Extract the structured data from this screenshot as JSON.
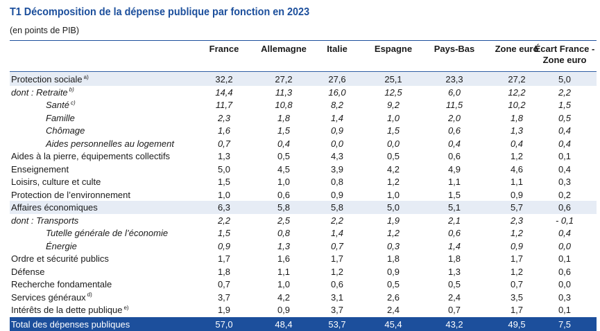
{
  "header": {
    "title": "T1  Décomposition de la dépense publique par fonction en 2023",
    "subtitle": "(en points de PIB)"
  },
  "columns": [
    "France",
    "Allemagne",
    "Italie",
    "Espagne",
    "Pays-Bas",
    "Zone euro",
    "Écart France -",
    "Zone euro"
  ],
  "rows": [
    {
      "label": "Protection sociale",
      "note": "a)",
      "values": [
        "32,2",
        "27,2",
        "27,6",
        "25,1",
        "23,3",
        "27,2",
        "5,0"
      ]
    },
    {
      "prefix": "dont : ",
      "label": "Retraite",
      "note": "b)",
      "values": [
        "14,4",
        "11,3",
        "16,0",
        "12,5",
        "6,0",
        "12,2",
        "2,2"
      ]
    },
    {
      "label": "Santé",
      "note": "c)",
      "values": [
        "11,7",
        "10,8",
        "8,2",
        "9,2",
        "11,5",
        "10,2",
        "1,5"
      ]
    },
    {
      "label": "Famille",
      "values": [
        "2,3",
        "1,8",
        "1,4",
        "1,0",
        "2,0",
        "1,8",
        "0,5"
      ]
    },
    {
      "label": "Chômage",
      "values": [
        "1,6",
        "1,5",
        "0,9",
        "1,5",
        "0,6",
        "1,3",
        "0,4"
      ]
    },
    {
      "label": "Aides personnelles au logement",
      "values": [
        "0,7",
        "0,4",
        "0,0",
        "0,0",
        "0,4",
        "0,4",
        "0,4"
      ]
    },
    {
      "label": "Aides à la pierre, équipements collectifs",
      "values": [
        "1,3",
        "0,5",
        "4,3",
        "0,5",
        "0,6",
        "1,2",
        "0,1"
      ]
    },
    {
      "label": "Enseignement",
      "values": [
        "5,0",
        "4,5",
        "3,9",
        "4,2",
        "4,9",
        "4,6",
        "0,4"
      ]
    },
    {
      "label": "Loisirs, culture et culte",
      "values": [
        "1,5",
        "1,0",
        "0,8",
        "1,2",
        "1,1",
        "1,1",
        "0,3"
      ]
    },
    {
      "label": "Protection de l’environnement",
      "values": [
        "1,0",
        "0,6",
        "0,9",
        "1,0",
        "1,5",
        "0,9",
        "0,2"
      ]
    },
    {
      "label": "Affaires économiques",
      "values": [
        "6,3",
        "5,8",
        "5,8",
        "5,0",
        "5,1",
        "5,7",
        "0,6"
      ]
    },
    {
      "prefix": "dont : ",
      "label": "Transports",
      "values": [
        "2,2",
        "2,5",
        "2,2",
        "1,9",
        "2,1",
        "2,3",
        "- 0,1"
      ]
    },
    {
      "label": "Tutelle générale de l’économie",
      "values": [
        "1,5",
        "0,8",
        "1,4",
        "1,2",
        "0,6",
        "1,2",
        "0,4"
      ]
    },
    {
      "label": "Énergie",
      "values": [
        "0,9",
        "1,3",
        "0,7",
        "0,3",
        "1,4",
        "0,9",
        "0,0"
      ]
    },
    {
      "label": "Ordre et sécurité publics",
      "values": [
        "1,7",
        "1,6",
        "1,7",
        "1,8",
        "1,8",
        "1,7",
        "0,1"
      ]
    },
    {
      "label": "Défense",
      "values": [
        "1,8",
        "1,1",
        "1,2",
        "0,9",
        "1,3",
        "1,2",
        "0,6"
      ]
    },
    {
      "label": "Recherche fondamentale",
      "values": [
        "0,7",
        "1,0",
        "0,6",
        "0,5",
        "0,5",
        "0,7",
        "0,0"
      ]
    },
    {
      "label": "Services généraux",
      "note": "d)",
      "values": [
        "3,7",
        "4,2",
        "3,1",
        "2,6",
        "2,4",
        "3,5",
        "0,3"
      ]
    },
    {
      "label": "Intérêts de la dette publique",
      "note": "e)",
      "values": [
        "1,9",
        "0,9",
        "3,7",
        "2,4",
        "0,7",
        "1,7",
        "0,1"
      ]
    },
    {
      "label": "Total des dépenses publiques",
      "values": [
        "57,0",
        "48,4",
        "53,7",
        "45,4",
        "43,2",
        "49,5",
        "7,5"
      ]
    }
  ],
  "colors": {
    "accent": "#1c4f9c",
    "shade": "#e6ecf5"
  }
}
